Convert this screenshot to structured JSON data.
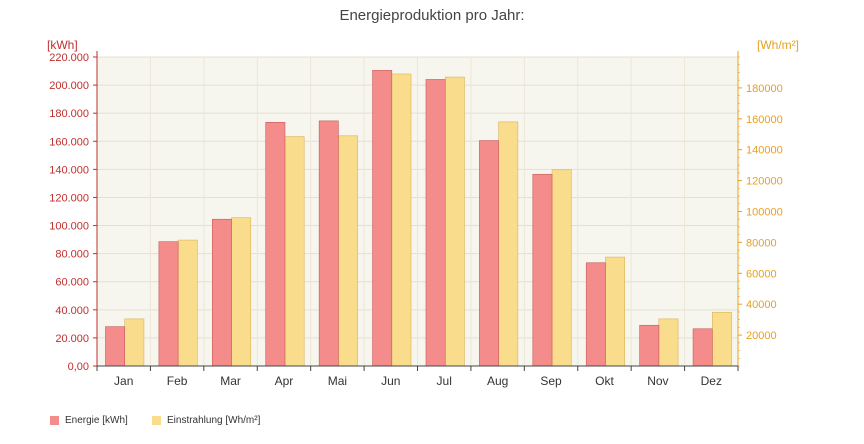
{
  "chart_data": {
    "type": "bar",
    "title": "Energieproduktion pro Jahr:",
    "categories": [
      "Jan",
      "Feb",
      "Mar",
      "Apr",
      "Mai",
      "Jun",
      "Jul",
      "Aug",
      "Sep",
      "Okt",
      "Nov",
      "Dez"
    ],
    "series": [
      {
        "name": "Energie [kWh]",
        "axis": "left",
        "color": "#f48c8c",
        "border": "#c85a5a",
        "values": [
          28000,
          88500,
          104500,
          173500,
          174500,
          210500,
          204000,
          160500,
          136500,
          73500,
          29000,
          26500
        ]
      },
      {
        "name": "Einstrahlung [Wh/m²]",
        "axis": "right",
        "color": "#f9dc8c",
        "border": "#d9b45a",
        "values": [
          30500,
          81500,
          96000,
          148500,
          149000,
          189000,
          187000,
          158000,
          127000,
          70500,
          30500,
          34800
        ]
      }
    ],
    "y_left": {
      "label": "[kWh]",
      "ylim": [
        0,
        220000
      ],
      "ticks": [
        "0,00",
        "20.000",
        "40.000",
        "60.000",
        "80.000",
        "100.000",
        "120.000",
        "140.000",
        "160.000",
        "180.000",
        "200.000",
        "220.000"
      ],
      "color": "#c0302f"
    },
    "y_right": {
      "label": "[Wh/m²]",
      "ylim": [
        0,
        200000
      ],
      "ticks": [
        "20000",
        "40000",
        "60000",
        "80000",
        "100000",
        "120000",
        "140000",
        "160000",
        "180000"
      ],
      "color": "#e8a020"
    },
    "grid": true,
    "legend": "bottom-left"
  }
}
